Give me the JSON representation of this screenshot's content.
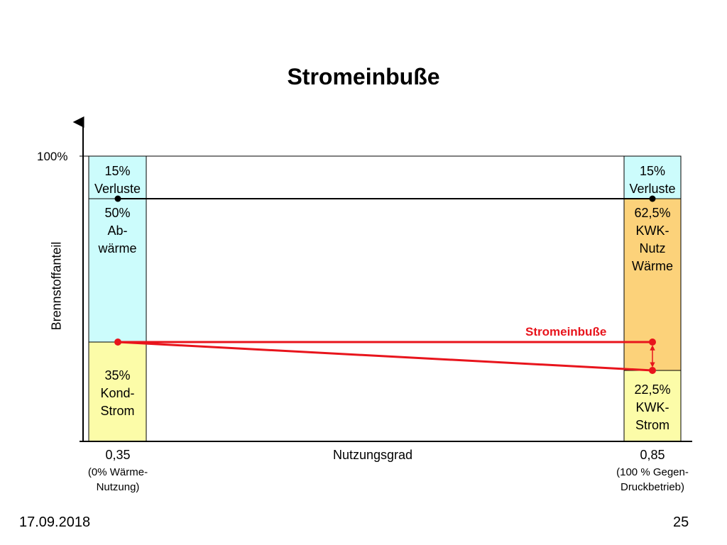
{
  "title": "Stromeinbuße",
  "y_axis": {
    "label": "Brennstoffanteil",
    "tick_100": "100%"
  },
  "x_axis": {
    "label": "Nutzungsgrad"
  },
  "left_column": {
    "x_value": "0,35",
    "note_line1": "(0% Wärme-",
    "note_line2": "Nutzung)",
    "segments": [
      {
        "lines": [
          "15%",
          "Verluste"
        ],
        "share": 15,
        "color": "#ccfcfc"
      },
      {
        "lines": [
          "50%",
          "Ab-",
          "wärme"
        ],
        "share": 50,
        "color": "#ccfcfc"
      },
      {
        "lines": [
          "35%",
          "Kond-",
          "Strom"
        ],
        "share": 35,
        "color": "#fcfca8"
      }
    ]
  },
  "right_column": {
    "x_value": "0,85",
    "note_line1": "(100 % Gegen-",
    "note_line2": "Druckbetrieb)",
    "segments": [
      {
        "lines": [
          "15%",
          "Verluste"
        ],
        "share": 15,
        "color": "#ccfcfc"
      },
      {
        "lines": [
          "62,5%",
          "KWK-",
          "Nutz",
          "Wärme"
        ],
        "share": 62.5,
        "color": "#fcd27a"
      },
      {
        "lines": [
          "22,5%",
          "KWK-",
          "Strom"
        ],
        "share": 22.5,
        "color": "#fcfca8"
      }
    ]
  },
  "annotation": {
    "label": "Stromeinbuße",
    "color": "#e8141c"
  },
  "footer": {
    "date": "17.09.2018",
    "page": "25"
  }
}
